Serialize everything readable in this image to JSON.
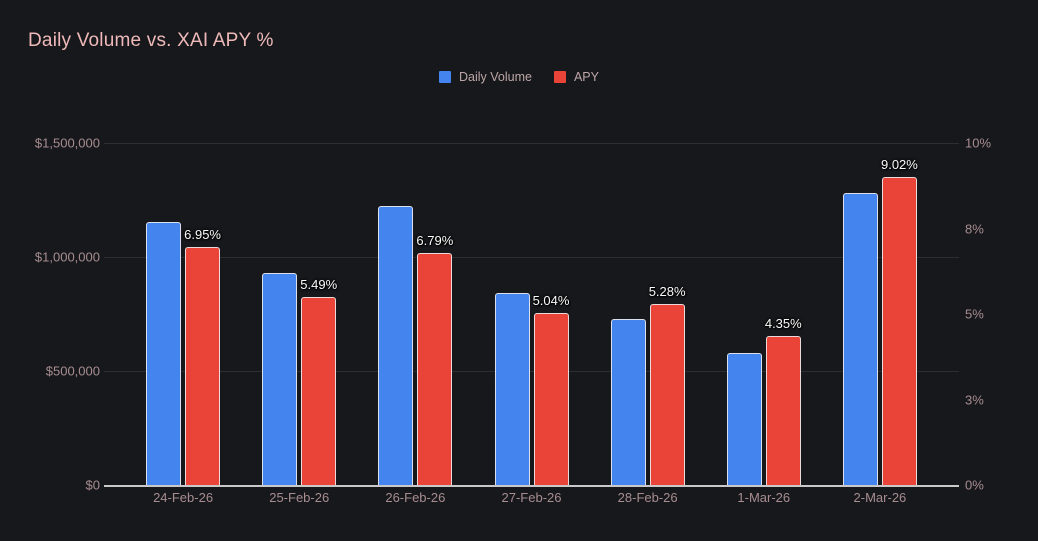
{
  "title": "Daily Volume vs. XAI APY %",
  "colors": {
    "background": "#17181C",
    "title": "#EFB9B9",
    "axis_text": "#A78D8F",
    "gridline": "#2D2E33",
    "zero_line": "#C9C9C9",
    "volume_blue": "#4384EF",
    "apy_red": "#EA4438"
  },
  "legend": {
    "items": [
      {
        "label": "Daily Volume",
        "color": "#4384EF"
      },
      {
        "label": "APY",
        "color": "#EA4438"
      }
    ]
  },
  "chart_data": {
    "type": "bar",
    "title": "Daily Volume vs. XAI APY %",
    "categories": [
      "24-Feb-26",
      "25-Feb-26",
      "26-Feb-26",
      "27-Feb-26",
      "28-Feb-26",
      "1-Mar-26",
      "2-Mar-26"
    ],
    "series": [
      {
        "name": "Daily Volume",
        "axis": "left",
        "color": "#4384EF",
        "values": [
          1155000,
          930000,
          1225000,
          840000,
          730000,
          580000,
          1280000
        ]
      },
      {
        "name": "APY",
        "axis": "right",
        "color": "#EA4438",
        "values": [
          6.95,
          5.49,
          6.79,
          5.04,
          5.28,
          4.35,
          9.02
        ],
        "data_labels": [
          "6.95%",
          "5.49%",
          "6.79%",
          "5.04%",
          "5.28%",
          "4.35%",
          "9.02%"
        ]
      }
    ],
    "left_axis": {
      "range": [
        0,
        1500000
      ],
      "ticks": [
        {
          "value": 0,
          "label": "$0"
        },
        {
          "value": 500000,
          "label": "$500,000"
        },
        {
          "value": 1000000,
          "label": "$1,000,000"
        },
        {
          "value": 1500000,
          "label": "$1,500,000"
        }
      ]
    },
    "right_axis": {
      "range": [
        0,
        10
      ],
      "ticks": [
        {
          "value": 0,
          "label": "0%"
        },
        {
          "value": 2.5,
          "label": "3%"
        },
        {
          "value": 5,
          "label": "5%"
        },
        {
          "value": 7.5,
          "label": "8%"
        },
        {
          "value": 10,
          "label": "10%"
        }
      ]
    },
    "grid": "horizontal-on-left-ticks",
    "legend_position": "top-center"
  }
}
